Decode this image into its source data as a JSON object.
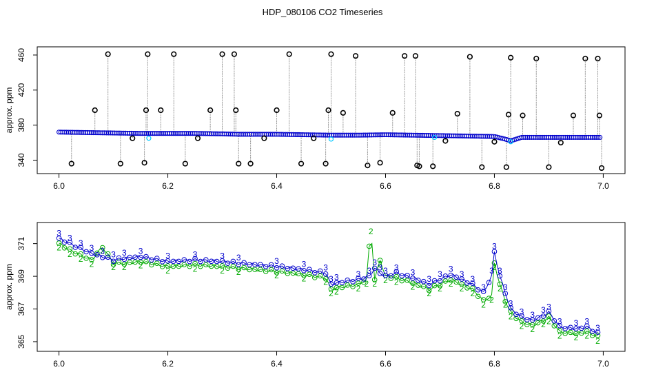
{
  "figure": {
    "title": "HDP_080106  CO2 Timeseries"
  },
  "colors": {
    "background": "#ffffff",
    "axis": "#000000",
    "raw_points": "#000000",
    "raw_lines": "#8c8c8c",
    "series_2": "#00aa00",
    "series_3": "#0000cc",
    "cyan_points": "#00c8ff"
  },
  "chart_data": [
    {
      "type": "scatter",
      "title": "HDP_080106  CO2 Timeseries",
      "xlabel": "",
      "ylabel": "approx. ppm",
      "xlim": [
        6.0,
        7.0
      ],
      "ylim": [
        330,
        464
      ],
      "xticks": [
        6.0,
        6.2,
        6.4,
        6.6,
        6.8,
        7.0
      ],
      "xtick_labels": [
        "6.0",
        "6.2",
        "6.4",
        "6.6",
        "6.8",
        "7.0"
      ],
      "yticks": [
        340,
        380,
        420,
        460
      ],
      "ytick_labels": [
        "340",
        "380",
        "420",
        "460"
      ],
      "grid": false,
      "baseline_series": {
        "name": "blue",
        "x": [
          6.0,
          6.05,
          6.1,
          6.15,
          6.2,
          6.25,
          6.3,
          6.33,
          6.4,
          6.45,
          6.5,
          6.55,
          6.6,
          6.65,
          6.7,
          6.75,
          6.8,
          6.82,
          6.83,
          6.85,
          6.9,
          6.95,
          6.99
        ],
        "y": [
          372,
          371.5,
          371,
          370.5,
          370.5,
          370.5,
          370,
          369.5,
          369.5,
          369,
          368.5,
          368.5,
          369,
          368.5,
          368,
          367.5,
          367,
          364,
          362,
          366,
          366,
          366,
          366
        ]
      },
      "spikes": {
        "name": "black",
        "x": [
          6.023,
          6.066,
          6.09,
          6.113,
          6.135,
          6.157,
          6.16,
          6.163,
          6.187,
          6.211,
          6.232,
          6.255,
          6.278,
          6.3,
          6.322,
          6.325,
          6.33,
          6.352,
          6.377,
          6.4,
          6.423,
          6.445,
          6.468,
          6.49,
          6.495,
          6.5,
          6.522,
          6.545,
          6.567,
          6.59,
          6.613,
          6.635,
          6.655,
          6.658,
          6.662,
          6.687,
          6.71,
          6.732,
          6.755,
          6.777,
          6.8,
          6.822,
          6.826,
          6.83,
          6.852,
          6.877,
          6.9,
          6.922,
          6.945,
          6.967,
          6.99,
          6.993,
          6.997
        ],
        "y": [
          336,
          397,
          461,
          336,
          365,
          337,
          397,
          461,
          397,
          461,
          336,
          365,
          397,
          461,
          461,
          397,
          336,
          336,
          365,
          397,
          461,
          336,
          365,
          336,
          397,
          461,
          394,
          459,
          334,
          337,
          394,
          459,
          459,
          334,
          333,
          333,
          362,
          393,
          458,
          332,
          361,
          332,
          392,
          457,
          391,
          456,
          332,
          360,
          391,
          456,
          456,
          391,
          331
        ]
      }
    },
    {
      "type": "line",
      "title": "",
      "xlabel": "",
      "ylabel": "approx. ppm",
      "xlim": [
        6.0,
        7.0
      ],
      "ylim": [
        364.7,
        372.0
      ],
      "xticks": [
        6.0,
        6.2,
        6.4,
        6.6,
        6.8,
        7.0
      ],
      "xtick_labels": [
        "6.0",
        "6.2",
        "6.4",
        "6.6",
        "6.8",
        "7.0"
      ],
      "yticks": [
        365,
        367,
        369,
        371
      ],
      "ytick_labels": [
        "365",
        "367",
        "369",
        "371"
      ],
      "grid": false,
      "series": [
        {
          "name": "3",
          "x": [
            6.0,
            6.02,
            6.04,
            6.06,
            6.08,
            6.1,
            6.12,
            6.15,
            6.2,
            6.25,
            6.3,
            6.33,
            6.4,
            6.45,
            6.49,
            6.5,
            6.51,
            6.55,
            6.57,
            6.58,
            6.59,
            6.6,
            6.62,
            6.65,
            6.68,
            6.7,
            6.72,
            6.74,
            6.76,
            6.78,
            6.795,
            6.8,
            6.81,
            6.82,
            6.83,
            6.85,
            6.87,
            6.89,
            6.9,
            6.92,
            6.95,
            6.97,
            6.99
          ],
          "y": [
            371.3,
            371.0,
            370.7,
            370.4,
            370.2,
            370.0,
            370.1,
            370.2,
            369.9,
            370.0,
            369.9,
            369.8,
            369.6,
            369.4,
            369.2,
            368.5,
            368.6,
            368.8,
            369.0,
            369.5,
            369.2,
            369.0,
            369.2,
            368.9,
            368.5,
            368.8,
            369.1,
            368.8,
            368.5,
            368.0,
            369.0,
            370.5,
            369.0,
            368.0,
            367.0,
            366.5,
            366.3,
            366.6,
            366.8,
            365.9,
            365.8,
            365.9,
            365.5
          ]
        },
        {
          "name": "2",
          "x": [
            6.0,
            6.02,
            6.04,
            6.06,
            6.08,
            6.1,
            6.12,
            6.15,
            6.2,
            6.25,
            6.3,
            6.33,
            6.4,
            6.45,
            6.49,
            6.5,
            6.51,
            6.55,
            6.565,
            6.573,
            6.58,
            6.59,
            6.6,
            6.62,
            6.65,
            6.68,
            6.7,
            6.72,
            6.74,
            6.76,
            6.78,
            6.795,
            6.8,
            6.81,
            6.82,
            6.83,
            6.85,
            6.87,
            6.89,
            6.9,
            6.92,
            6.95,
            6.97,
            6.99
          ],
          "y": [
            371.0,
            370.6,
            370.3,
            370.0,
            370.8,
            369.8,
            369.8,
            369.9,
            369.6,
            369.7,
            369.6,
            369.5,
            369.3,
            369.1,
            368.9,
            368.2,
            368.3,
            368.5,
            368.8,
            372.0,
            368.8,
            370.0,
            369.0,
            368.9,
            368.6,
            368.2,
            368.5,
            368.8,
            368.5,
            368.2,
            367.5,
            367.8,
            369.8,
            368.5,
            367.5,
            366.8,
            366.2,
            366.0,
            366.3,
            366.5,
            365.6,
            365.5,
            365.6,
            365.3
          ]
        }
      ]
    }
  ]
}
